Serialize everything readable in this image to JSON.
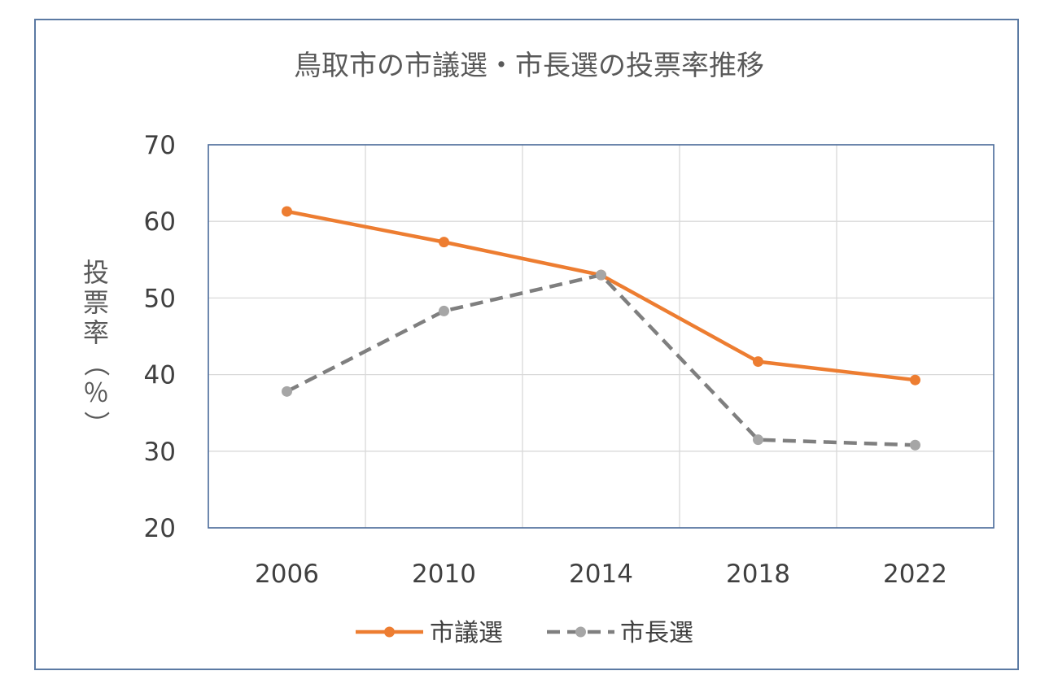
{
  "chart_data": {
    "type": "line",
    "title": "鳥取市の市議選・市長選の投票率推移",
    "xlabel": "",
    "ylabel": "投票率（％）",
    "categories": [
      "2006",
      "2010",
      "2014",
      "2018",
      "2022"
    ],
    "ylim": [
      20,
      70
    ],
    "yticks": [
      "20",
      "30",
      "40",
      "50",
      "60",
      "70"
    ],
    "grid": true,
    "legend": "bottom",
    "series": [
      {
        "name": "市議選",
        "values": [
          61.3,
          57.3,
          53.0,
          41.7,
          39.3
        ],
        "color": "#ed7d31",
        "style": "solid"
      },
      {
        "name": "市長選",
        "values": [
          37.8,
          48.3,
          53.0,
          31.5,
          30.8
        ],
        "color": "#7f7f7f",
        "style": "dashed"
      }
    ]
  }
}
